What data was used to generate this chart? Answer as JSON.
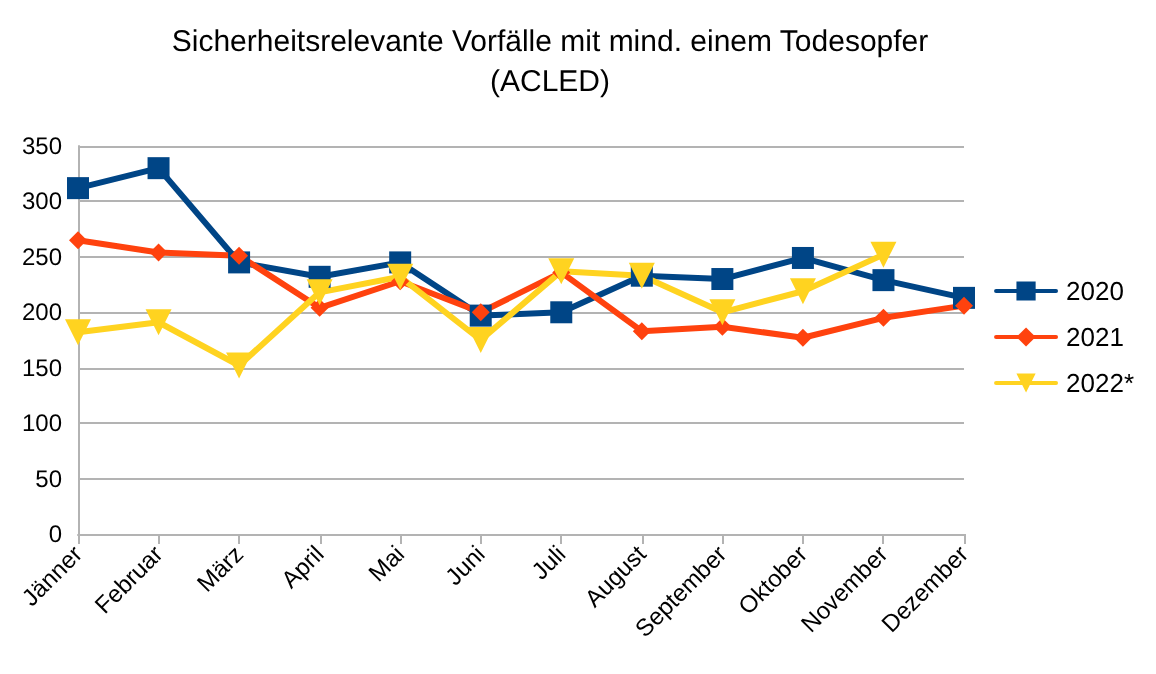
{
  "chart_data": {
    "type": "line",
    "title": "Sicherheitsrelevante Vorfälle mit mind. einem Todesopfer\n(ACLED)",
    "categories": [
      "Jänner",
      "Februar",
      "März",
      "April",
      "Mai",
      "Juni",
      "Juli",
      "August",
      "September",
      "Oktober",
      "November",
      "Dezember"
    ],
    "series": [
      {
        "name": "2020",
        "color": "#004586",
        "marker": "square",
        "values": [
          312,
          330,
          245,
          232,
          245,
          197,
          200,
          233,
          230,
          249,
          229,
          213
        ]
      },
      {
        "name": "2021",
        "color": "#ff420e",
        "marker": "diamond",
        "values": [
          265,
          254,
          251,
          204,
          228,
          200,
          236,
          183,
          187,
          177,
          195,
          206
        ]
      },
      {
        "name": "2022*",
        "color": "#ffd320",
        "marker": "triangle",
        "values": [
          182,
          191,
          152,
          218,
          232,
          175,
          237,
          233,
          200,
          219,
          252,
          null
        ]
      }
    ],
    "ylim": [
      0,
      350
    ],
    "yticks": [
      0,
      50,
      100,
      150,
      200,
      250,
      300,
      350
    ],
    "grid": "y",
    "legend": "right",
    "line_style": "solid"
  }
}
